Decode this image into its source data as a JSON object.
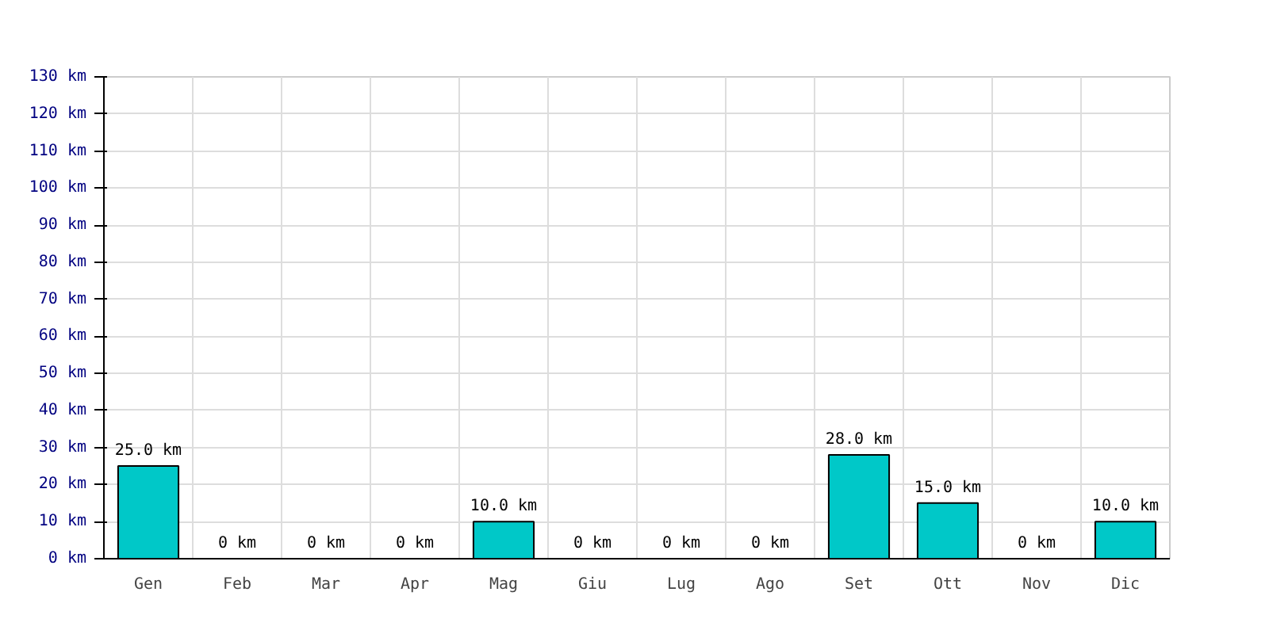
{
  "chart_data": {
    "type": "bar",
    "categories": [
      "Gen",
      "Feb",
      "Mar",
      "Apr",
      "Mag",
      "Giu",
      "Lug",
      "Ago",
      "Set",
      "Ott",
      "Nov",
      "Dic"
    ],
    "values": [
      25,
      0,
      0,
      0,
      10,
      0,
      0,
      0,
      28,
      15,
      0,
      10
    ],
    "value_labels": [
      "25.0 km",
      "0 km",
      "0 km",
      "0 km",
      "10.0 km",
      "0 km",
      "0 km",
      "0 km",
      "28.0 km",
      "15.0 km",
      "0 km",
      "10.0 km"
    ],
    "color": "#00c8c8",
    "ylim": [
      0,
      130
    ],
    "yticks": [
      {
        "value": 0,
        "label": "0 km"
      },
      {
        "value": 10,
        "label": "10 km"
      },
      {
        "value": 20,
        "label": "20 km"
      },
      {
        "value": 30,
        "label": "30 km"
      },
      {
        "value": 40,
        "label": "40 km"
      },
      {
        "value": 50,
        "label": "50 km"
      },
      {
        "value": 60,
        "label": "60 km"
      },
      {
        "value": 70,
        "label": "70 km"
      },
      {
        "value": 80,
        "label": "80 km"
      },
      {
        "value": 90,
        "label": "90 km"
      },
      {
        "value": 100,
        "label": "100 km"
      },
      {
        "value": 110,
        "label": "110 km"
      },
      {
        "value": 120,
        "label": "120 km"
      },
      {
        "value": 130,
        "label": "130 km"
      }
    ],
    "grid": true
  }
}
